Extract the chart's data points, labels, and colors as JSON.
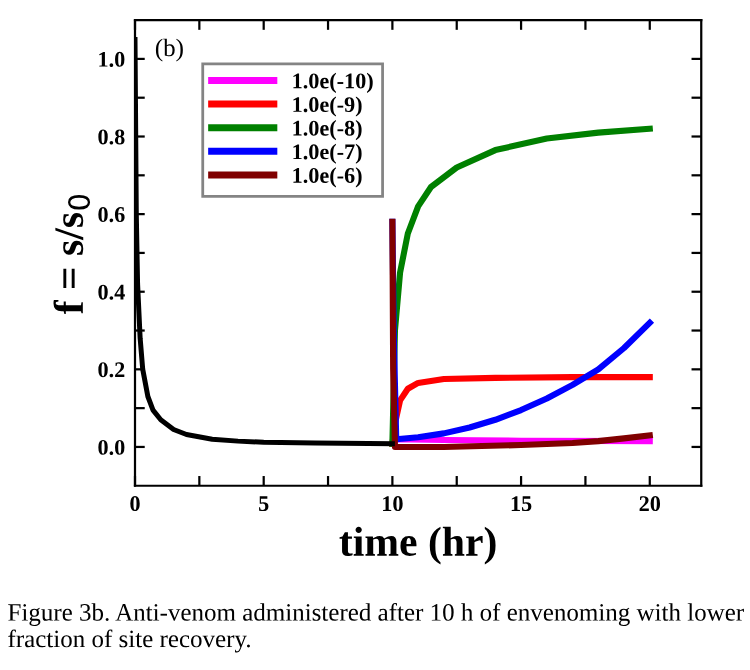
{
  "chart_data": {
    "type": "line",
    "xlabel": "time (hr)",
    "ylabel": "f = s/s$_{0}$",
    "xlim": [
      0,
      22
    ],
    "ylim": [
      -0.1,
      1.1
    ],
    "xticks": [
      0,
      {
        "value": 2.5,
        "label": null
      },
      5,
      {
        "value": 7.5,
        "label": null
      },
      10,
      {
        "value": 12.5,
        "label": null
      },
      15,
      {
        "value": 17.5,
        "label": null
      },
      20
    ],
    "yticks": [
      "0.0",
      {
        "value": 0.1,
        "label": null
      },
      {
        "value": 0.2,
        "label": "0.2"
      },
      {
        "value": 0.3,
        "label": null
      },
      {
        "value": 0.4,
        "label": "0.4"
      },
      {
        "value": 0.5,
        "label": null
      },
      {
        "value": 0.6,
        "label": "0.6"
      },
      {
        "value": 0.7,
        "label": null
      },
      {
        "value": 0.8,
        "label": "0.8"
      },
      {
        "value": 0.9,
        "label": null
      },
      {
        "value": 1.0,
        "label": "1.0"
      }
    ],
    "legend": "top left",
    "grid": false,
    "marker": "none",
    "line_style": "solid",
    "annotations": [
      "(b)",
      "Figure 3b. Anti-venom administered after 10 h of envenoming with lower fraction of site recovery."
    ],
    "series": [
      {
        "color": "#000000",
        "x": [
          0,
          0.05,
          0.1,
          0.2,
          0.3,
          0.5,
          0.7,
          1,
          1.5,
          2,
          3,
          4,
          5,
          7,
          10
        ],
        "values": [
          1.05,
          0.6,
          0.42,
          0.28,
          0.2,
          0.13,
          0.095,
          0.07,
          0.045,
          0.032,
          0.02,
          0.015,
          0.012,
          0.01,
          0.008
        ]
      },
      {
        "name": "1.0e(-10)",
        "color": "#ff00ff",
        "x": [
          10,
          10.05,
          12,
          15,
          20
        ],
        "values": [
          0.008,
          0.02,
          0.018,
          0.016,
          0.015
        ]
      },
      {
        "name": "1.0e(-9)",
        "color": "#ff0000",
        "x": [
          10,
          10.1,
          10.3,
          10.6,
          11,
          12,
          14,
          17,
          20
        ],
        "values": [
          0.008,
          0.06,
          0.12,
          0.15,
          0.165,
          0.175,
          0.178,
          0.18,
          0.18
        ]
      },
      {
        "name": "1.0e(-8)",
        "color": "#008000",
        "x": [
          10,
          10.1,
          10.3,
          10.6,
          11,
          11.5,
          12.5,
          14,
          16,
          18,
          20
        ],
        "values": [
          0.008,
          0.3,
          0.45,
          0.55,
          0.62,
          0.67,
          0.72,
          0.765,
          0.795,
          0.81,
          0.82
        ]
      },
      {
        "name": "1.0e(-7)",
        "color": "#0000ff",
        "x": [
          10,
          10.05,
          10.15,
          11,
          12,
          13,
          14,
          15,
          16,
          17,
          18,
          19,
          20
        ],
        "values": [
          0.58,
          0.3,
          0.02,
          0.025,
          0.035,
          0.05,
          0.07,
          0.095,
          0.125,
          0.16,
          0.2,
          0.255,
          0.32
        ]
      },
      {
        "name": "1.0e(-6)",
        "color": "#800000",
        "x": [
          10,
          10.03,
          10.1,
          12,
          15,
          17,
          18,
          19,
          20
        ],
        "values": [
          0.58,
          0.2,
          0.0,
          0.0,
          0.005,
          0.01,
          0.015,
          0.022,
          0.03
        ]
      }
    ]
  }
}
